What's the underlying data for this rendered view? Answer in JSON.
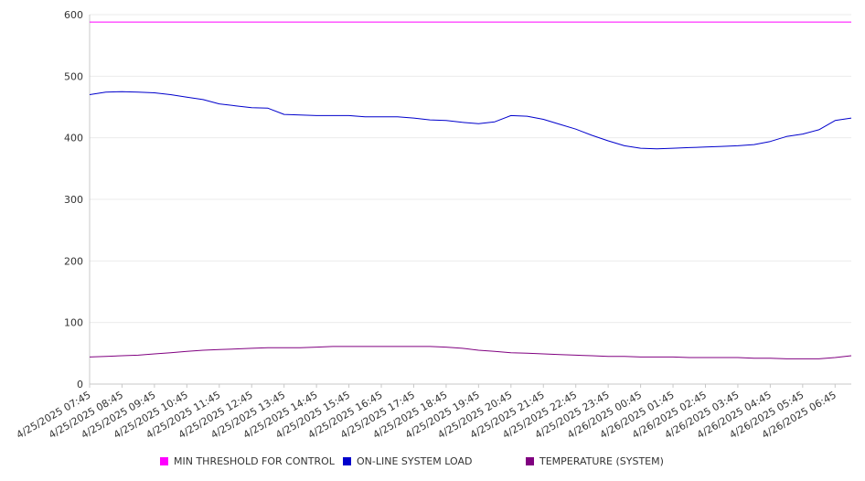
{
  "chart_data": {
    "type": "line",
    "title": "",
    "xlabel": "",
    "ylabel": "",
    "ylim": [
      0,
      600
    ],
    "yticks": [
      0,
      100,
      200,
      300,
      400,
      500,
      600
    ],
    "grid": true,
    "legend_placement": "bottom",
    "x_tick_labels": [
      "4/25/2025 07:45",
      "4/25/2025 08:45",
      "4/25/2025 09:45",
      "4/25/2025 10:45",
      "4/25/2025 11:45",
      "4/25/2025 12:45",
      "4/25/2025 13:45",
      "4/25/2025 14:45",
      "4/25/2025 15:45",
      "4/25/2025 16:45",
      "4/25/2025 17:45",
      "4/25/2025 18:45",
      "4/25/2025 19:45",
      "4/25/2025 20:45",
      "4/25/2025 21:45",
      "4/25/2025 22:45",
      "4/25/2025 23:45",
      "4/26/2025 00:45",
      "4/26/2025 01:45",
      "4/26/2025 02:45",
      "4/26/2025 03:45",
      "4/26/2025 04:45",
      "4/26/2025 05:45",
      "4/26/2025 06:45"
    ],
    "x": [
      "4/25/2025 07:45",
      "4/25/2025 08:15",
      "4/25/2025 08:45",
      "4/25/2025 09:15",
      "4/25/2025 09:45",
      "4/25/2025 10:15",
      "4/25/2025 10:45",
      "4/25/2025 11:15",
      "4/25/2025 11:45",
      "4/25/2025 12:15",
      "4/25/2025 12:45",
      "4/25/2025 13:15",
      "4/25/2025 13:45",
      "4/25/2025 14:15",
      "4/25/2025 14:45",
      "4/25/2025 15:15",
      "4/25/2025 15:45",
      "4/25/2025 16:15",
      "4/25/2025 16:45",
      "4/25/2025 17:15",
      "4/25/2025 17:45",
      "4/25/2025 18:15",
      "4/25/2025 18:45",
      "4/25/2025 19:15",
      "4/25/2025 19:45",
      "4/25/2025 20:15",
      "4/25/2025 20:45",
      "4/25/2025 21:15",
      "4/25/2025 21:45",
      "4/25/2025 22:15",
      "4/25/2025 22:45",
      "4/25/2025 23:15",
      "4/25/2025 23:45",
      "4/26/2025 00:15",
      "4/26/2025 00:45",
      "4/26/2025 01:15",
      "4/26/2025 01:45",
      "4/26/2025 02:15",
      "4/26/2025 02:45",
      "4/26/2025 03:15",
      "4/26/2025 03:45",
      "4/26/2025 04:15",
      "4/26/2025 04:45",
      "4/26/2025 05:15",
      "4/26/2025 05:45",
      "4/26/2025 06:15",
      "4/26/2025 06:45",
      "4/26/2025 07:15"
    ],
    "series": [
      {
        "name": "MIN THRESHOLD FOR CONTROL",
        "color": "#ff00ff",
        "values": [
          588,
          588,
          588,
          588,
          588,
          588,
          588,
          588,
          588,
          588,
          588,
          588,
          588,
          588,
          588,
          588,
          588,
          588,
          588,
          588,
          588,
          588,
          588,
          588,
          588,
          588,
          588,
          588,
          588,
          588,
          588,
          588,
          588,
          588,
          588,
          588,
          588,
          588,
          588,
          588,
          588,
          588,
          588,
          588,
          588,
          588,
          588,
          588
        ]
      },
      {
        "name": "ON-LINE SYSTEM LOAD",
        "color": "#0000cc",
        "values": [
          470,
          474,
          475,
          474,
          473,
          470,
          466,
          462,
          455,
          452,
          449,
          448,
          438,
          437,
          436,
          436,
          436,
          434,
          434,
          434,
          432,
          429,
          428,
          425,
          423,
          426,
          436,
          435,
          430,
          422,
          414,
          404,
          395,
          387,
          383,
          382,
          383,
          384,
          385,
          386,
          387,
          389,
          394,
          402,
          406,
          413,
          428,
          432
        ]
      },
      {
        "name": "TEMPERATURE (SYSTEM)",
        "color": "#800080",
        "values": [
          44,
          45,
          46,
          47,
          49,
          51,
          53,
          55,
          56,
          57,
          58,
          59,
          59,
          59,
          60,
          61,
          61,
          61,
          61,
          61,
          61,
          61,
          60,
          58,
          55,
          53,
          51,
          50,
          49,
          48,
          47,
          46,
          45,
          45,
          44,
          44,
          44,
          43,
          43,
          43,
          43,
          42,
          42,
          41,
          41,
          41,
          43,
          46
        ]
      }
    ]
  },
  "legend": [
    {
      "label": "MIN THRESHOLD FOR CONTROL",
      "color": "#ff00ff"
    },
    {
      "label": "ON-LINE SYSTEM LOAD",
      "color": "#0000cc"
    },
    {
      "label": "TEMPERATURE (SYSTEM)",
      "color": "#800080"
    }
  ]
}
